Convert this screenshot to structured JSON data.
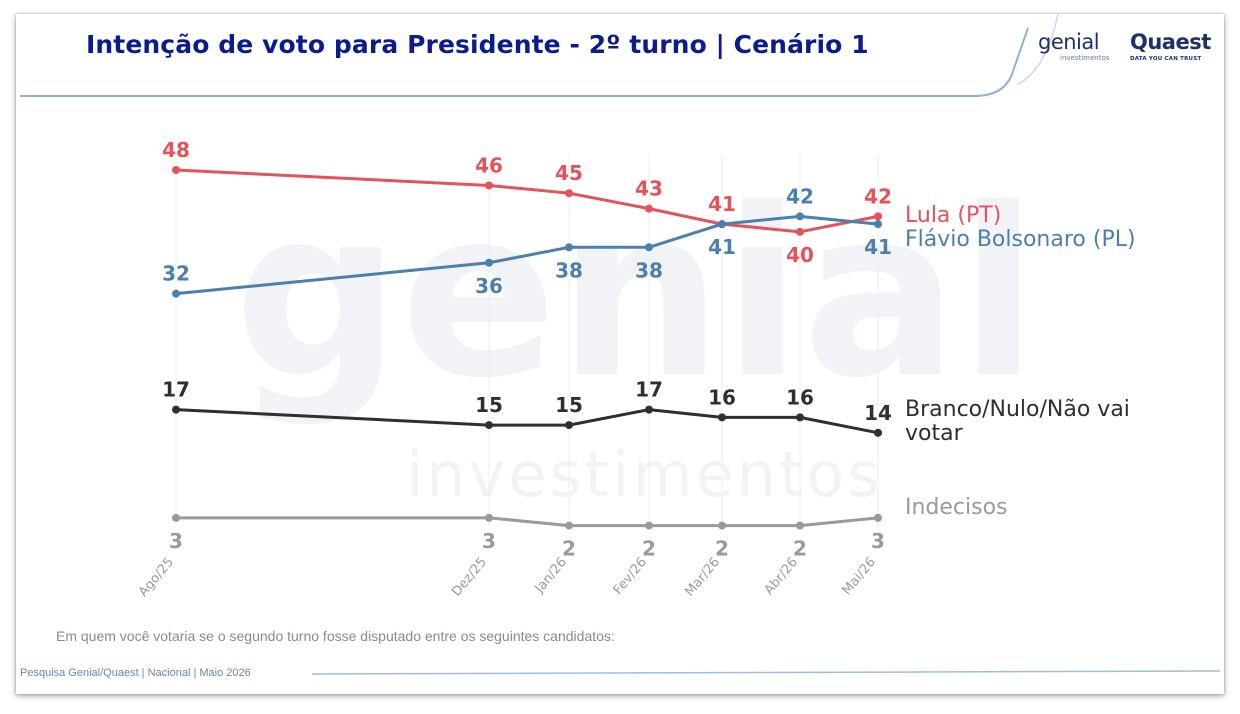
{
  "header": {
    "title": "Intenção de voto para Presidente - 2º turno | Cenário 1"
  },
  "logos": {
    "genial_word": "genial",
    "genial_sub": "investimentos",
    "quaest_word": "Quaest",
    "quaest_sub": "DATA YOU CAN TRUST"
  },
  "watermark": {
    "word": "genial",
    "sub": "investimentos"
  },
  "question": "Em quem você votaria se o segundo turno fosse disputado entre os seguintes candidatos:",
  "footer": "Pesquisa Genial/Quaest | Nacional | Maio 2026",
  "chart_data": {
    "type": "line",
    "categories": [
      "Ago/25",
      "Dez/25",
      "Jan/26",
      "Fev/26",
      "Mar/26",
      "Abr/26",
      "Mai/26"
    ],
    "ylabel": "",
    "xlabel": "",
    "ylim": [
      0,
      50
    ],
    "grid": "vertical",
    "legend": "right (labels at line ends)",
    "series": [
      {
        "name": "Lula (PT)",
        "color": "#e5525a",
        "values": [
          48,
          46,
          45,
          43,
          41,
          40,
          42
        ]
      },
      {
        "name": "Flávio Bolsonaro (PL)",
        "color": "#4a7fb0",
        "values": [
          32,
          36,
          38,
          38,
          41,
          42,
          41
        ]
      },
      {
        "name": "Branco/Nulo/Não vai votar",
        "color": "#2f2f2f",
        "values": [
          17,
          15,
          15,
          17,
          16,
          16,
          14
        ]
      },
      {
        "name": "Indecisos",
        "color": "#9a9a9a",
        "values": [
          3,
          3,
          2,
          2,
          2,
          2,
          3
        ]
      }
    ]
  }
}
